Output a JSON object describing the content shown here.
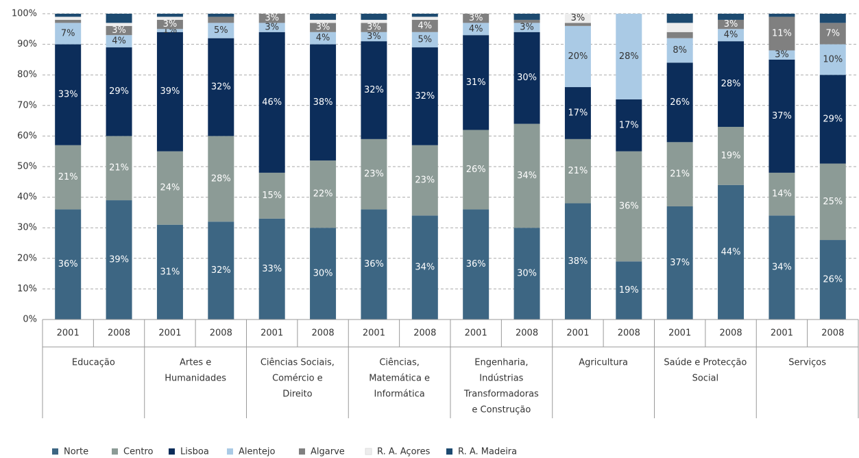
{
  "chart_data": {
    "type": "stacked_bar",
    "categories": [
      "2001",
      "2008",
      "2001",
      "2008",
      "2001",
      "2008",
      "2001",
      "2008",
      "2001",
      "2008",
      "2001",
      "2008",
      "2001",
      "2008",
      "2001",
      "2008"
    ],
    "groups": [
      [
        "Educação"
      ],
      [
        "Artes e",
        "Humanidades"
      ],
      [
        "Ciências Sociais,",
        "Comércio e",
        "Direito"
      ],
      [
        "Ciências,",
        "Matemática e",
        "Informática"
      ],
      [
        "Engenharia,",
        "Indústrias",
        "Transformadoras",
        "e Construção"
      ],
      [
        "Agricultura"
      ],
      [
        "Saúde e Protecção",
        "Social"
      ],
      [
        "Serviços"
      ]
    ],
    "series": [
      {
        "name": "Norte",
        "color": "#3d6683",
        "label_color": "#ffffff",
        "values": [
          36,
          39,
          31,
          32,
          33,
          30,
          36,
          34,
          36,
          30,
          38,
          19,
          37,
          44,
          34,
          26
        ],
        "value_labels": [
          "36%",
          "39%",
          "31%",
          "32%",
          "33%",
          "30%",
          "36%",
          "34%",
          "36%",
          "30%",
          "38%",
          "19%",
          "37%",
          "44%",
          "34%",
          "26%"
        ]
      },
      {
        "name": "Centro",
        "color": "#8c9b96",
        "label_color": "#ffffff",
        "values": [
          21,
          21,
          24,
          28,
          15,
          22,
          23,
          23,
          26,
          34,
          21,
          36,
          21,
          19,
          14,
          25
        ],
        "value_labels": [
          "21%",
          "21%",
          "24%",
          "28%",
          "15%",
          "22%",
          "23%",
          "23%",
          "26%",
          "34%",
          "21%",
          "36%",
          "21%",
          "19%",
          "14%",
          "25%"
        ]
      },
      {
        "name": "Lisboa",
        "color": "#0c2d5a",
        "label_color": "#ffffff",
        "values": [
          33,
          29,
          39,
          32,
          46,
          38,
          32,
          32,
          31,
          30,
          17,
          17,
          26,
          28,
          37,
          29
        ],
        "value_labels": [
          "33%",
          "29%",
          "39%",
          "32%",
          "46%",
          "38%",
          "32%",
          "32%",
          "31%",
          "30%",
          "17%",
          "17%",
          "26%",
          "28%",
          "37%",
          "29%"
        ]
      },
      {
        "name": "Alentejo",
        "color": "#aacae5",
        "label_color": "#333333",
        "values": [
          7,
          4,
          1,
          5,
          3,
          4,
          3,
          5,
          4,
          3,
          20,
          28,
          8,
          4,
          3,
          10
        ],
        "value_labels": [
          "7%",
          "4%",
          "1%",
          "5%",
          "3%",
          "4%",
          "3%",
          "5%",
          "4%",
          "3%",
          "20%",
          "28%",
          "8%",
          "4%",
          "3%",
          "10%"
        ]
      },
      {
        "name": "Algarve",
        "color": "#808080",
        "label_color": "#ffffff",
        "values": [
          1,
          3,
          3,
          2,
          3,
          3,
          3,
          4,
          3,
          1,
          1,
          0,
          2,
          3,
          11,
          7
        ],
        "value_labels": [
          null,
          "3%",
          "3%",
          null,
          "3%",
          "3%",
          "3%",
          "4%",
          "3%",
          null,
          null,
          null,
          null,
          "3%",
          "11%",
          "7%"
        ]
      },
      {
        "name": "R. A. Açores",
        "color": "#ededed",
        "label_color": "#333333",
        "values": [
          1,
          1,
          1,
          0,
          0,
          1,
          1,
          1,
          0,
          0,
          3,
          0,
          3,
          0,
          0,
          0
        ],
        "value_labels": [
          null,
          null,
          null,
          null,
          null,
          null,
          null,
          null,
          null,
          null,
          "3%",
          null,
          null,
          null,
          null,
          null
        ]
      },
      {
        "name": "R. A. Madeira",
        "color": "#1d4a70",
        "label_color": "#ffffff",
        "values": [
          1,
          3,
          1,
          1,
          0,
          2,
          2,
          1,
          0,
          2,
          0,
          0,
          3,
          2,
          1,
          3
        ],
        "value_labels": [
          null,
          null,
          null,
          null,
          null,
          null,
          null,
          null,
          null,
          null,
          null,
          null,
          null,
          null,
          null,
          null
        ]
      }
    ],
    "ylim": [
      0,
      100
    ],
    "yticks": [
      {
        "value": 0,
        "label": "0%"
      },
      {
        "value": 10,
        "label": "10%"
      },
      {
        "value": 20,
        "label": "20%"
      },
      {
        "value": 30,
        "label": "30%"
      },
      {
        "value": 40,
        "label": "40%"
      },
      {
        "value": 50,
        "label": "50%"
      },
      {
        "value": 60,
        "label": "60%"
      },
      {
        "value": 70,
        "label": "70%"
      },
      {
        "value": 80,
        "label": "80%"
      },
      {
        "value": 90,
        "label": "90%"
      },
      {
        "value": 100,
        "label": "100%"
      }
    ],
    "grid": true,
    "legend": "bottom"
  }
}
